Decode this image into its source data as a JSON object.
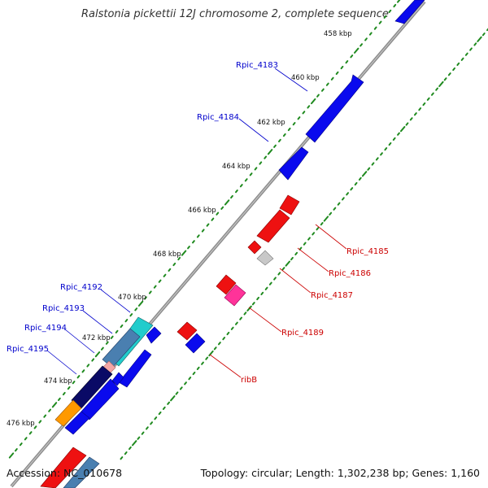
{
  "title": "Ralstonia pickettii 12J chromosome 2, complete sequence",
  "footer": {
    "accession": "Accession: NC_010678",
    "topology": "Topology: circular; Length: 1,302,238 bp; Genes: 1,160"
  },
  "colors": {
    "backbone": "#8c8c8c",
    "tick_green": "#1f8a1f",
    "forward_label": "#0000cc",
    "reverse_label": "#cc0000",
    "blue_gene": "#0a0aee",
    "red_gene": "#ee1111",
    "pink_gene": "#ff3399",
    "light_pink_gene": "#f4a6a6",
    "gray_gene": "#c8c8c8",
    "cyan_gene": "#22cccc",
    "steelblue_gene": "#4a7fb0",
    "navy_gene": "#0a0a66",
    "orange_gene": "#ff9900"
  },
  "scale": {
    "ticks": [
      "458 kbp",
      "460 kbp",
      "462 kbp",
      "464 kbp",
      "466 kbp",
      "468 kbp",
      "470 kbp",
      "472 kbp",
      "474 kbp",
      "476 kbp"
    ]
  },
  "genes_forward_labels": [
    "Rpic_4183",
    "Rpic_4184",
    "Rpic_4192",
    "Rpic_4193",
    "Rpic_4194",
    "Rpic_4195"
  ],
  "genes_reverse_labels": [
    "Rpic_4185",
    "Rpic_4186",
    "Rpic_4187",
    "Rpic_4189",
    "ribB"
  ]
}
